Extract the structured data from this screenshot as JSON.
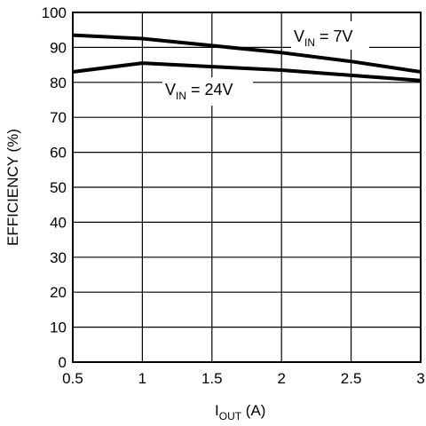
{
  "chart_data": {
    "type": "line",
    "title": "",
    "xlabel": {
      "main": "I",
      "sub": "OUT",
      "unit": " (A)"
    },
    "ylabel": "EFFICIENCY (%)",
    "xlim": [
      0.5,
      3
    ],
    "ylim": [
      0,
      100
    ],
    "x_ticks": [
      0.5,
      1,
      1.5,
      2,
      2.5,
      3
    ],
    "x_tick_labels": [
      "0.5",
      "1",
      "1.5",
      "2",
      "2.5",
      "3"
    ],
    "y_ticks": [
      0,
      10,
      20,
      30,
      40,
      50,
      60,
      70,
      80,
      90,
      100
    ],
    "y_tick_labels": [
      "0",
      "10",
      "20",
      "30",
      "40",
      "50",
      "60",
      "70",
      "80",
      "90",
      "100"
    ],
    "grid": true,
    "legend": "none",
    "series": [
      {
        "name": "VIN = 7V",
        "label": {
          "main": "V",
          "sub": "IN",
          "rest": " = 7V"
        },
        "x": [
          0.5,
          1,
          1.5,
          2,
          2.5,
          3
        ],
        "y": [
          93.5,
          92.5,
          90.5,
          88.5,
          86,
          83
        ]
      },
      {
        "name": "VIN = 24V",
        "label": {
          "main": "V",
          "sub": "IN",
          "rest": " = 24V"
        },
        "x": [
          0.5,
          1,
          1.5,
          2,
          2.5,
          3
        ],
        "y": [
          83,
          85.5,
          84.5,
          83.5,
          82,
          80.5
        ]
      }
    ],
    "colors": {
      "line": "#000000",
      "grid": "#000000",
      "background": "#ffffff"
    }
  }
}
